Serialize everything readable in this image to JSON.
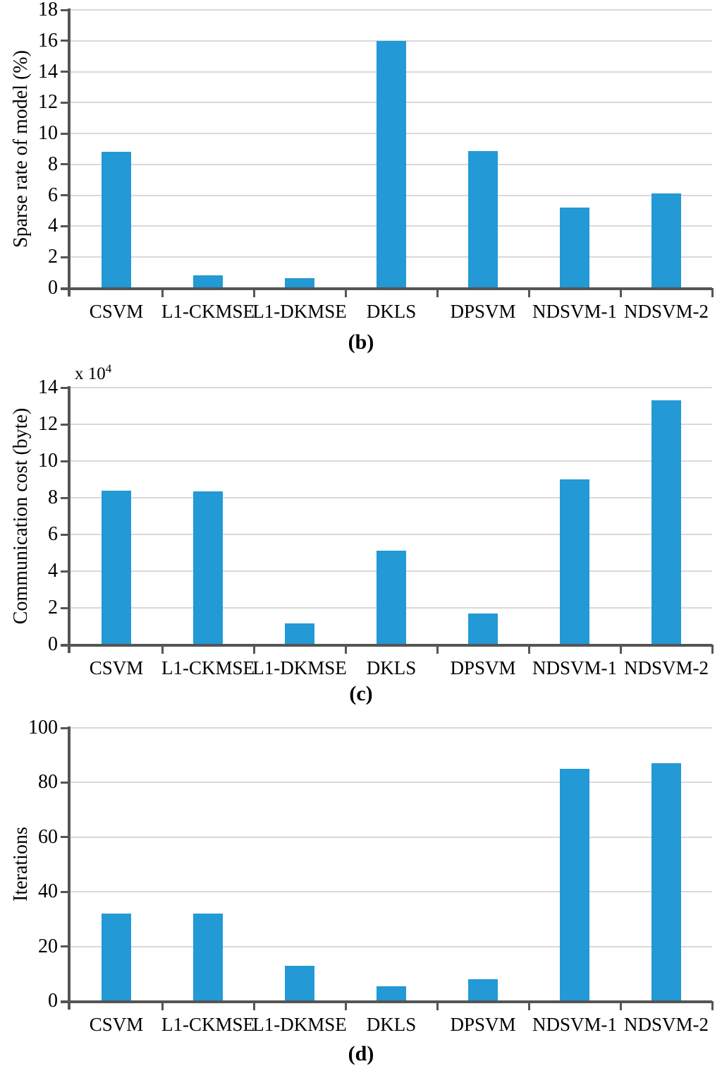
{
  "figure": {
    "background": "#ffffff",
    "bar_color": "#2399d5",
    "gridline_color": "#d9d9d9",
    "axis_color": "#555555",
    "text_color": "#000000"
  },
  "chart_data": [
    {
      "id": "b",
      "type": "bar",
      "caption": "(b)",
      "ylabel": "Sparse rate of model (%)",
      "xlabel": "",
      "categories": [
        "CSVM",
        "L1-CKMSE",
        "L1-DKMSE",
        "DKLS",
        "DPSVM",
        "NDSVM-1",
        "NDSVM-2"
      ],
      "values": [
        8.8,
        0.8,
        0.65,
        16,
        8.85,
        5.2,
        6.1
      ],
      "ylim": [
        0,
        18
      ],
      "ytick_step": 2,
      "grid": true,
      "legend": null
    },
    {
      "id": "c",
      "type": "bar",
      "caption": "(c)",
      "ylabel": "Communication cost (byte)",
      "xlabel": "",
      "y_multiplier_label": {
        "base": "x 10",
        "exponent": "4"
      },
      "categories": [
        "CSVM",
        "L1-CKMSE",
        "L1-DKMSE",
        "DKLS",
        "DPSVM",
        "NDSVM-1",
        "NDSVM-2"
      ],
      "values": [
        8.4,
        8.35,
        1.15,
        5.1,
        1.7,
        9,
        13.3
      ],
      "ylim": [
        0,
        14
      ],
      "ytick_step": 2,
      "grid": true,
      "legend": null
    },
    {
      "id": "d",
      "type": "bar",
      "caption": "(d)",
      "ylabel": "Iterations",
      "xlabel": "",
      "categories": [
        "CSVM",
        "L1-CKMSE",
        "L1-DKMSE",
        "DKLS",
        "DPSVM",
        "NDSVM-1",
        "NDSVM-2"
      ],
      "values": [
        32,
        32,
        13,
        5.3,
        8,
        85,
        87
      ],
      "ylim": [
        0,
        100
      ],
      "ytick_step": 20,
      "grid": true,
      "legend": null
    }
  ]
}
